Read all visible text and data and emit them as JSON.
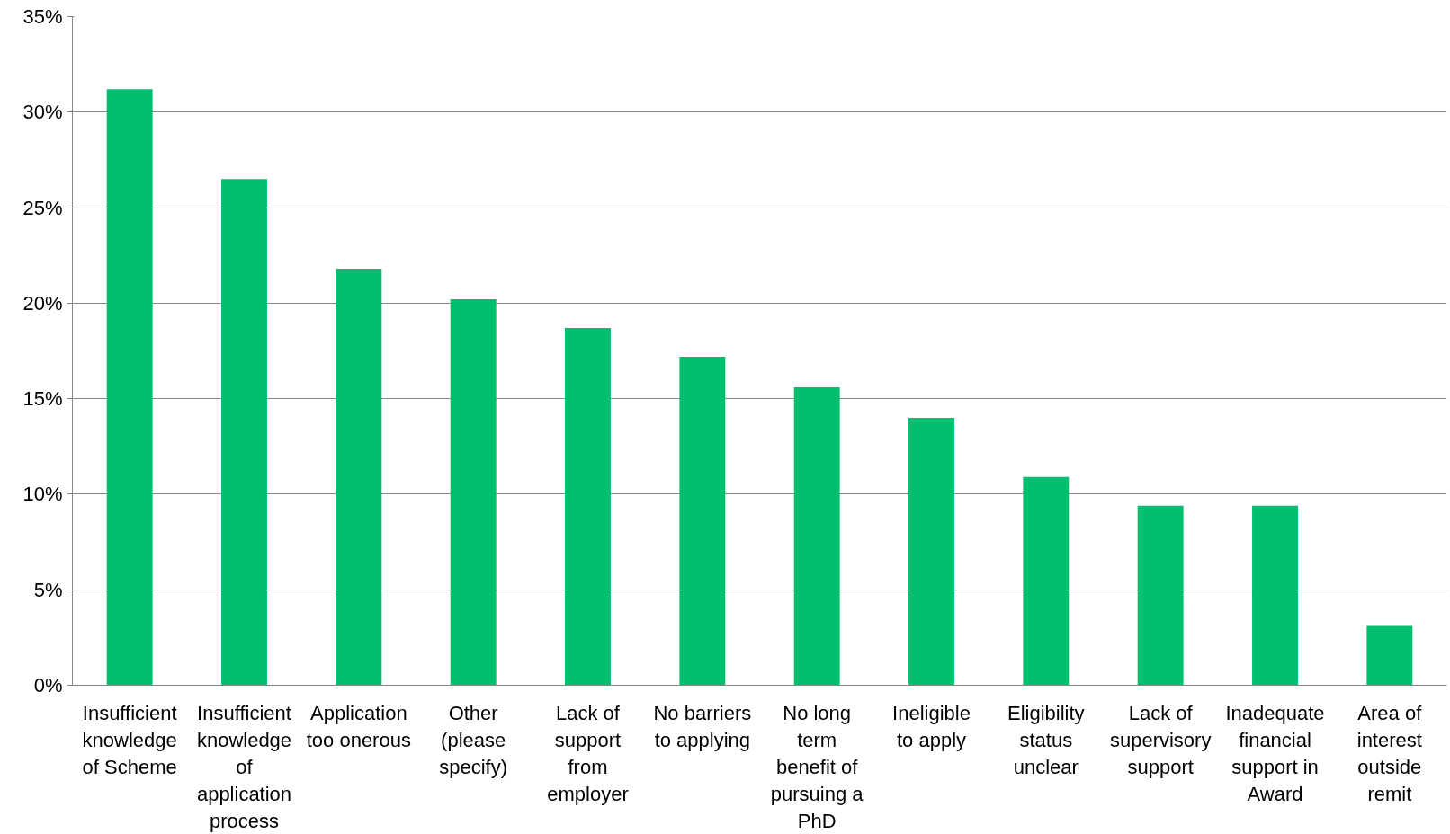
{
  "chart_data": {
    "type": "bar",
    "categories": [
      "Insufficient knowledge of Scheme",
      "Insufficient knowledge of application process",
      "Application too onerous",
      "Other (please specify)",
      "Lack of support from employer",
      "No barriers to applying",
      "No long term benefit of pursuing a PhD",
      "Ineligible to apply",
      "Eligibility status unclear",
      "Lack of supervisory support",
      "Inadequate financial support in Award",
      "Area of interest outside remit"
    ],
    "values": [
      31.2,
      26.5,
      21.8,
      20.2,
      18.7,
      17.2,
      15.6,
      14.0,
      10.9,
      9.4,
      9.4,
      3.1
    ],
    "color": "#00bf6f",
    "ylim": [
      0,
      35
    ],
    "yticks": [
      {
        "value": 0,
        "label": "0%"
      },
      {
        "value": 5,
        "label": "5%"
      },
      {
        "value": 10,
        "label": "10%"
      },
      {
        "value": 15,
        "label": "15%"
      },
      {
        "value": 20,
        "label": "20%"
      },
      {
        "value": 25,
        "label": "25%"
      },
      {
        "value": 30,
        "label": "30%"
      },
      {
        "value": 35,
        "label": "35%"
      }
    ],
    "grid": "y"
  }
}
